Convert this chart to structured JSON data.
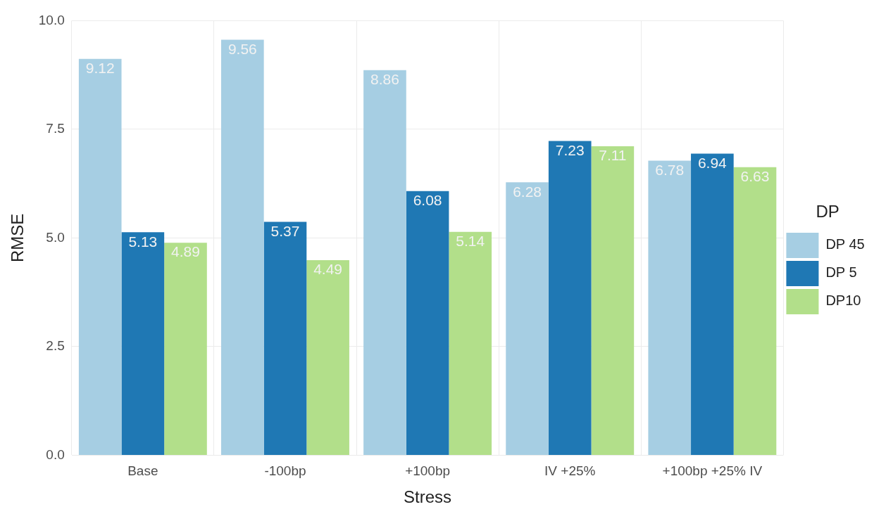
{
  "chart_data": {
    "type": "bar",
    "xlabel": "Stress",
    "ylabel": "RMSE",
    "legend_title": "DP",
    "categories": [
      "Base",
      "-100bp",
      "+100bp",
      "IV +25%",
      "+100bp +25% IV"
    ],
    "series": [
      {
        "name": "DP 45",
        "color": "#a6cee3",
        "values": [
          9.12,
          9.56,
          8.86,
          6.28,
          6.78
        ]
      },
      {
        "name": "DP 5",
        "color": "#1f78b4",
        "values": [
          5.13,
          5.37,
          6.08,
          7.23,
          6.94
        ]
      },
      {
        "name": "DP10",
        "color": "#b2df8a",
        "values": [
          4.89,
          4.49,
          5.14,
          7.11,
          6.63
        ]
      }
    ],
    "ylim": [
      0,
      10
    ],
    "yticks": [
      {
        "value": 0,
        "label": "0.0"
      },
      {
        "value": 2.5,
        "label": "2.5"
      },
      {
        "value": 5,
        "label": "5.0"
      },
      {
        "value": 7.5,
        "label": "7.5"
      },
      {
        "value": 10,
        "label": "10.0"
      }
    ],
    "grid": true,
    "legend": "right",
    "data_labels": true
  }
}
